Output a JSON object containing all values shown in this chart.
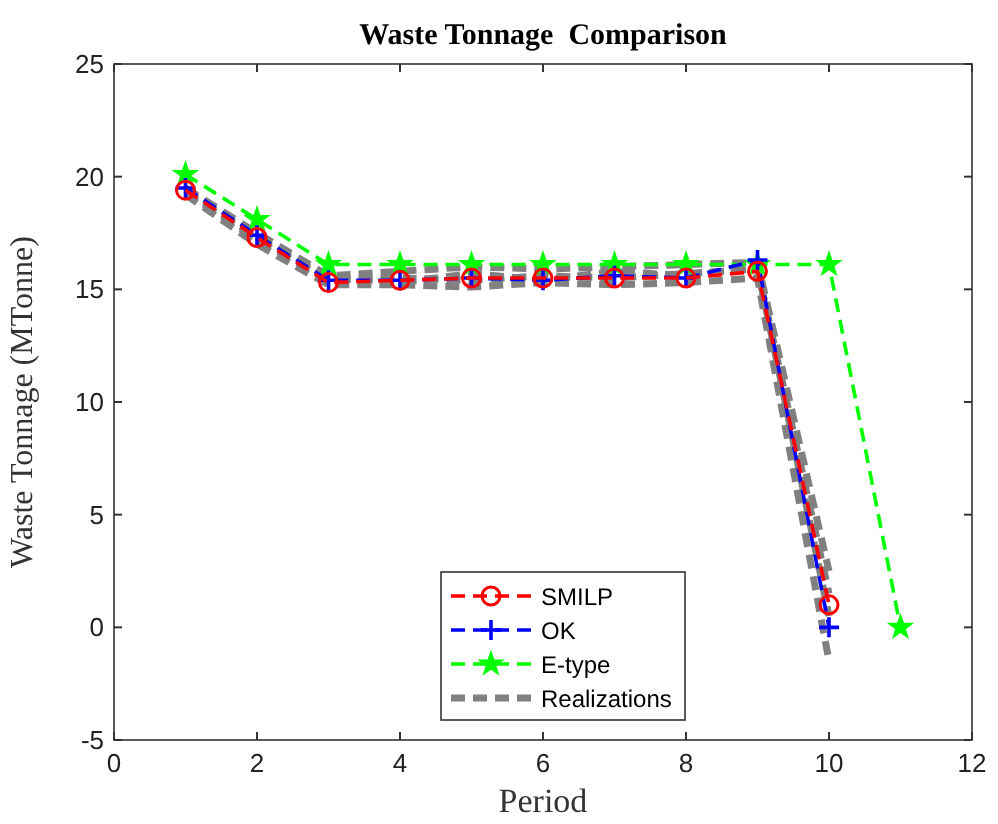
{
  "chart_data": {
    "type": "line",
    "title": "Waste Tonnage  Comparison",
    "xlabel": "Period",
    "ylabel": "Waste Tonnage (MTonne)",
    "x": [
      1,
      2,
      3,
      4,
      5,
      6,
      7,
      8,
      9,
      10
    ],
    "xlim": [
      0,
      12
    ],
    "xticks": [
      0,
      2,
      4,
      6,
      8,
      10,
      12
    ],
    "ylim": [
      -5,
      25
    ],
    "yticks": [
      -5,
      0,
      5,
      10,
      15,
      20,
      25
    ],
    "grid": false,
    "legend": "bottom",
    "line_style": "dashed",
    "series": [
      {
        "name": "SMILP",
        "color": "#ff0000",
        "marker": "circle",
        "values": [
          19.4,
          17.3,
          15.3,
          15.4,
          15.5,
          15.5,
          15.5,
          15.5,
          15.8,
          1.0
        ]
      },
      {
        "name": "OK",
        "color": "#0000ff",
        "marker": "cross",
        "values": [
          19.5,
          17.4,
          15.4,
          15.4,
          15.5,
          15.4,
          15.6,
          15.5,
          16.3,
          0
        ]
      },
      {
        "name": "E-type",
        "color": "#00ff00",
        "marker": "star",
        "x": [
          1,
          2,
          3,
          4,
          5,
          6,
          7,
          8,
          9,
          10,
          11
        ],
        "values": [
          20.1,
          18.1,
          16.1,
          16.1,
          16.1,
          16.1,
          16.1,
          16.1,
          16.1,
          16.1,
          0
        ]
      },
      {
        "name": "Realizations",
        "color": "#808080",
        "marker": "none",
        "values": [
          19.5,
          17.5,
          15.6,
          15.8,
          16.0,
          15.9,
          16.0,
          16.1,
          16.2,
          2.5
        ]
      },
      {
        "color": "#808080",
        "marker": "none",
        "values": [
          19.2,
          17.0,
          15.2,
          15.2,
          15.1,
          15.3,
          15.2,
          15.3,
          15.5,
          -1.5
        ]
      },
      {
        "color": "#808080",
        "marker": "none",
        "values": [
          19.3,
          17.2,
          15.4,
          15.5,
          15.4,
          15.6,
          15.5,
          15.7,
          15.9,
          1.5
        ]
      },
      {
        "color": "#808080",
        "marker": "none",
        "values": [
          19.4,
          17.3,
          15.5,
          15.3,
          15.7,
          15.4,
          15.8,
          15.6,
          16.0,
          0.5
        ]
      }
    ]
  }
}
